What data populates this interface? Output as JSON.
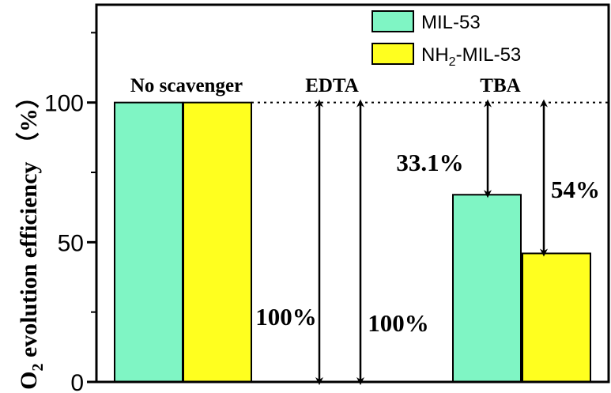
{
  "chart_data": {
    "type": "bar",
    "title": "",
    "ylabel_main": "O",
    "ylabel_sub": "2",
    "ylabel_rest": " evolution efficiency （%）",
    "ylim": [
      0,
      135
    ],
    "yticks": [
      0,
      50,
      100
    ],
    "grid": false,
    "legend_position": "top-right",
    "categories": [
      "No scavenger",
      "EDTA",
      "TBA"
    ],
    "series": [
      {
        "name": "MIL-53",
        "name_parts": [
          "MIL-53"
        ],
        "color": "#7ff5c4",
        "values": [
          100,
          0,
          67
        ]
      },
      {
        "name": "NH2-MIL-53",
        "name_parts": [
          "NH",
          "2",
          "-MIL-53"
        ],
        "color": "#ffff1f",
        "values": [
          100,
          0,
          46
        ]
      }
    ],
    "reference_line": 100,
    "arrows": [
      {
        "category": "EDTA",
        "series": "MIL-53",
        "from": 100,
        "to": 0,
        "label": "100%"
      },
      {
        "category": "EDTA",
        "series": "NH2-MIL-53",
        "from": 100,
        "to": 0,
        "label": "100%"
      },
      {
        "category": "TBA",
        "series": "MIL-53",
        "from": 100,
        "to": 67,
        "label": "33.1%"
      },
      {
        "category": "TBA",
        "series": "NH2-MIL-53",
        "from": 100,
        "to": 46,
        "label": "54%"
      }
    ]
  }
}
